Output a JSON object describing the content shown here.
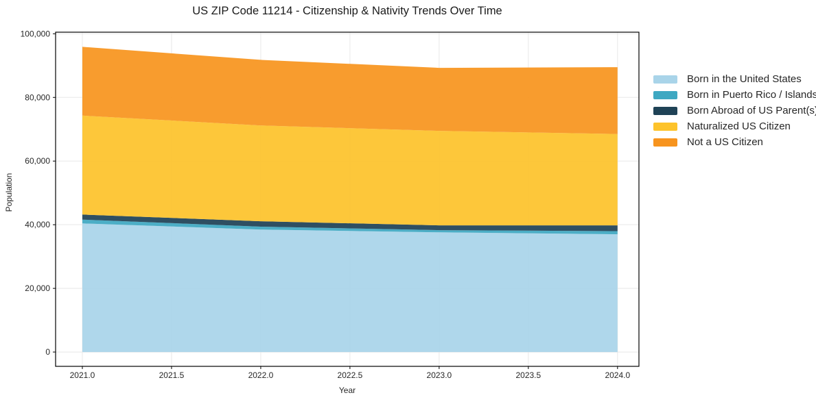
{
  "chart": {
    "title": "US ZIP Code 11214 - Citizenship & Nativity Trends Over Time",
    "xlabel": "Year",
    "ylabel": "Population"
  },
  "chart_data": {
    "type": "area",
    "stacked": true,
    "title": "US ZIP Code 11214 - Citizenship & Nativity Trends Over Time",
    "xlabel": "Year",
    "ylabel": "Population",
    "x": [
      2021,
      2022,
      2023,
      2024
    ],
    "series": [
      {
        "name": "Born in the United States",
        "color": "#a9d4e9",
        "values": [
          40400,
          38500,
          37600,
          37000
        ]
      },
      {
        "name": "Born in Puerto Rico / Islands",
        "color": "#3ea8c2",
        "values": [
          1200,
          900,
          700,
          1000
        ]
      },
      {
        "name": "Born Abroad of US Parent(s)",
        "color": "#1f4256",
        "values": [
          1600,
          1700,
          1500,
          1800
        ]
      },
      {
        "name": "Naturalized US Citizen",
        "color": "#fdc32b",
        "values": [
          31100,
          30100,
          29700,
          28700
        ]
      },
      {
        "name": "Not a US Citizen",
        "color": "#f7941e",
        "values": [
          21600,
          20600,
          19800,
          21000
        ]
      }
    ],
    "totals": [
      95900,
      91800,
      89300,
      89500
    ],
    "xlim": [
      2020.85,
      2024.12
    ],
    "ylim": [
      -4500,
      100500
    ],
    "xticks": [
      2021.0,
      2021.5,
      2022.0,
      2022.5,
      2023.0,
      2023.5,
      2024.0
    ],
    "yticks": [
      0,
      20000,
      40000,
      60000,
      80000,
      100000
    ],
    "grid": true,
    "legend_position": "right"
  },
  "colors": {
    "grid": "#e8e8e8",
    "spine": "#000000",
    "tick_label": "#262626",
    "title": "#1a1a1a"
  }
}
